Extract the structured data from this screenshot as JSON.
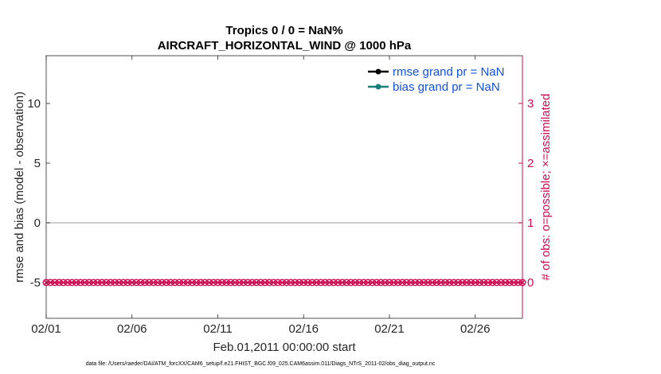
{
  "chart_data": {
    "type": "line",
    "title": [
      "Tropics 0 / 0 = NaN%",
      "AIRCRAFT_HORIZONTAL_WIND @ 1000 hPa"
    ],
    "xlabel": "Feb.01,2011 00:00:00 start",
    "ylabel_left": "rmse and bias (model - observation)",
    "ylabel_right": "# of obs: o=possible; ×=assimilated",
    "x_ticks": [
      "02/01",
      "02/06",
      "02/11",
      "02/16",
      "02/21",
      "02/26"
    ],
    "x_tick_days": [
      0,
      5,
      10,
      15,
      20,
      25
    ],
    "xlim_days": [
      0,
      27.75
    ],
    "y_left_ticks": [
      -5,
      0,
      5,
      10
    ],
    "y_left_lim": [
      -8,
      14
    ],
    "y_right_ticks": [
      0,
      1,
      2,
      3
    ],
    "y_right_lim": [
      -0.6,
      3.8
    ],
    "zero_line": 0,
    "legend": [
      {
        "label": "rmse grand pr = NaN",
        "color": "#000000"
      },
      {
        "label": "bias grand pr = NaN",
        "color": "#1a7f7a"
      }
    ],
    "legend_position": "top-right",
    "obs_series": {
      "name": "# of obs",
      "axis": "right",
      "color": "#cc0f55",
      "x_start_day": 0,
      "x_step_day": 0.25,
      "count": 112,
      "value": 0
    },
    "colors": {
      "obs": "#cc0f55",
      "legend_text": "#1452d6",
      "zero_line": "#bdbdbd"
    }
  },
  "footer": "data file: /Users/raeder/DAI/ATM_forcXX/CAM6_setup/f.e21.FHIST_BGC.f09_025.CAM6assim.011/Diags_NTrS_2011-02/obs_diag_output.nc"
}
